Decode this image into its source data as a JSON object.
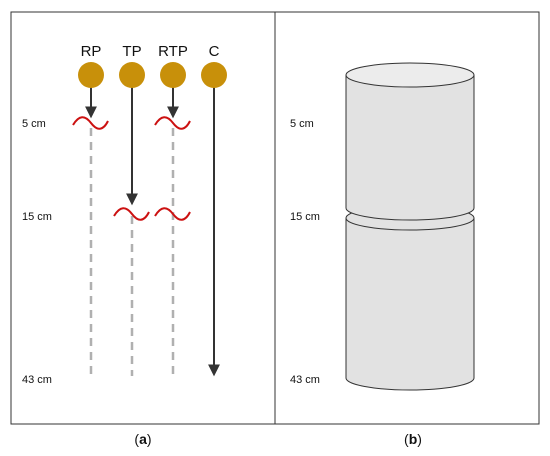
{
  "panel_a": {
    "columns": [
      {
        "label": "RP"
      },
      {
        "label": "TP"
      },
      {
        "label": "RTP"
      },
      {
        "label": "C"
      }
    ],
    "depths": [
      "5 cm",
      "15 cm",
      "43 cm"
    ],
    "caption": {
      "open": "(",
      "letter": "a",
      "close": ")"
    }
  },
  "panel_b": {
    "depths": [
      "5 cm",
      "15 cm",
      "43 cm"
    ],
    "caption": {
      "open": "(",
      "letter": "b",
      "close": ")"
    }
  },
  "colors": {
    "ball": "#c8900a",
    "arrow": "#333333",
    "dash": "#b0b0b0",
    "wave": "#cc1111",
    "cylinder_fill": "#e2e2e2",
    "cylinder_stroke": "#333333",
    "border": "#333333"
  }
}
